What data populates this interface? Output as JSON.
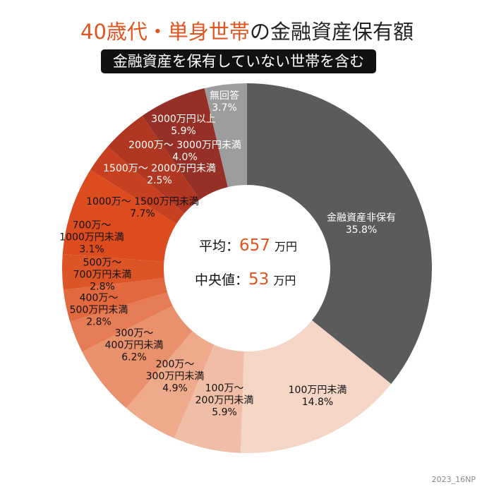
{
  "title": {
    "accent": "40歳代・単身世帯",
    "rest": "の金融資産保有額"
  },
  "subtitle": "金融資産を保有していない世帯を含む",
  "center": {
    "avg_label": "平均：",
    "avg_value": "657",
    "avg_unit": "万円",
    "median_label": "中央値：",
    "median_value": "53",
    "median_unit": "万円"
  },
  "credit": "2023_16NP",
  "chart_data": {
    "type": "pie",
    "donut": true,
    "start": "top",
    "direction": "clockwise",
    "title": "40歳代・単身世帯の金融資産保有額",
    "slices": [
      {
        "label": "金融資産非保有",
        "value": 35.8,
        "pct": "35.8%",
        "color": "#5a5c5c"
      },
      {
        "label": "100万円未満",
        "value": 14.8,
        "pct": "14.8%",
        "color": "#f5d5c6"
      },
      {
        "label": "100万～200万円未満",
        "value": 5.9,
        "pct": "5.9%",
        "color": "#f0bea7"
      },
      {
        "label": "200万～300万円未満",
        "value": 4.9,
        "pct": "4.9%",
        "color": "#eeaa8a"
      },
      {
        "label": "300万～400万円未満",
        "value": 6.2,
        "pct": "6.2%",
        "color": "#e9916c"
      },
      {
        "label": "400万～500万円未満",
        "value": 2.8,
        "pct": "2.8%",
        "color": "#e67c55"
      },
      {
        "label": "500万～700万円未満",
        "value": 2.8,
        "pct": "2.8%",
        "color": "#e1693d"
      },
      {
        "label": "700万～1000万円未満",
        "value": 3.1,
        "pct": "3.1%",
        "color": "#dd5527"
      },
      {
        "label": "1000万～1500万円未満",
        "value": 7.7,
        "pct": "7.7%",
        "color": "#dc4c1e"
      },
      {
        "label": "1500万～2000万円未満",
        "value": 2.5,
        "pct": "2.5%",
        "color": "#c8401f"
      },
      {
        "label": "2000万～3000万円未満",
        "value": 4.0,
        "pct": "4.0%",
        "color": "#b03822"
      },
      {
        "label": "3000万円以上",
        "value": 5.9,
        "pct": "5.9%",
        "color": "#963026"
      },
      {
        "label": "無回答",
        "value": 3.7,
        "pct": "3.7%",
        "color": "#9d9d9d"
      }
    ],
    "display_labels": [
      [
        "金融資産非保有"
      ],
      [
        "100万円未満"
      ],
      [
        "100万～",
        "200万円未満"
      ],
      [
        "200万～",
        "300万円未満"
      ],
      [
        "300万～",
        "400万円未満"
      ],
      [
        "400万～",
        "500万円未満"
      ],
      [
        "500万～",
        "700万円未満"
      ],
      [
        "700万～",
        "1000万円未満"
      ],
      [
        "1000万～ 1500万円未満"
      ],
      [
        "1500万～ 2000万円未満"
      ],
      [
        "2000万～ 3000万円未満"
      ],
      [
        "3000万円以上"
      ],
      [
        "無回答"
      ]
    ]
  }
}
